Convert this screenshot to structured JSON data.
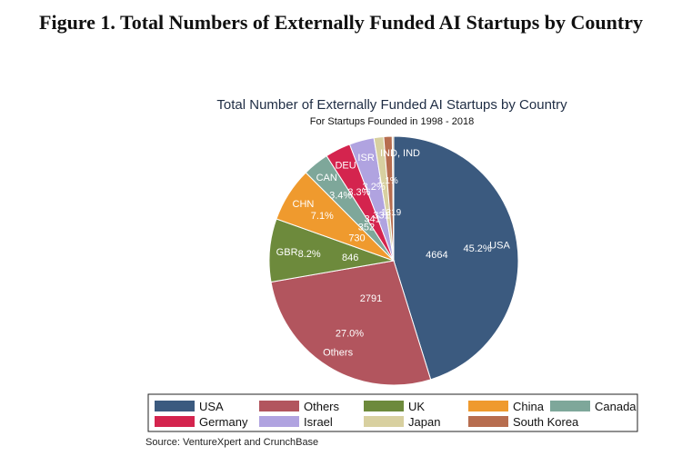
{
  "figure": {
    "heading": "Figure 1. Total Numbers of Externally Funded AI Startups by Country",
    "source": "Source: VentureXpert and CrunchBase"
  },
  "chart_data": {
    "type": "pie",
    "title": "Total Number of Externally Funded AI Startups by Country",
    "subtitle": "For Startups Founded in 1998 - 2018",
    "slices": [
      {
        "code": "USA",
        "legend": "USA",
        "count": "4664",
        "pct": "45.2%",
        "value": 4664,
        "color": "#3b5a7f"
      },
      {
        "code": "Others",
        "legend": "Others",
        "count": "2791",
        "pct": "27.0%",
        "value": 2791,
        "color": "#b2555e"
      },
      {
        "code": "GBR",
        "legend": "UK",
        "count": "846",
        "pct": "8.2%",
        "value": 846,
        "color": "#6d8a3c"
      },
      {
        "code": "CHN",
        "legend": "China",
        "count": "730",
        "pct": "7.1%",
        "value": 730,
        "color": "#ef9a2e"
      },
      {
        "code": "CAN",
        "legend": "Canada",
        "count": "352",
        "pct": "3.4%",
        "value": 352,
        "color": "#7ea79a"
      },
      {
        "code": "DEU",
        "legend": "Germany",
        "count": "341",
        "pct": "3.3%",
        "value": 341,
        "color": "#d4244e"
      },
      {
        "code": "ISR",
        "legend": "Israel",
        "count": "331",
        "pct": "3.2%",
        "value": 331,
        "color": "#b0a3e0"
      },
      {
        "code": "JPN",
        "legend": "Japan",
        "count": "130",
        "pct": "1.3%",
        "value": 130,
        "color": "#d8d0a0"
      },
      {
        "code": "KOR",
        "legend": "South Korea",
        "count": "113",
        "pct": "1.1%",
        "value": 113,
        "color": "#b76d4f"
      },
      {
        "code": "IND",
        "legend": "",
        "count": "",
        "pct": "",
        "value": 20,
        "color": "#d9c69f"
      }
    ],
    "crowded_labels": {
      "codes": "IND, IND",
      "pcts": "1.1%",
      "counts": "1319"
    },
    "legend_position": "bottom"
  }
}
